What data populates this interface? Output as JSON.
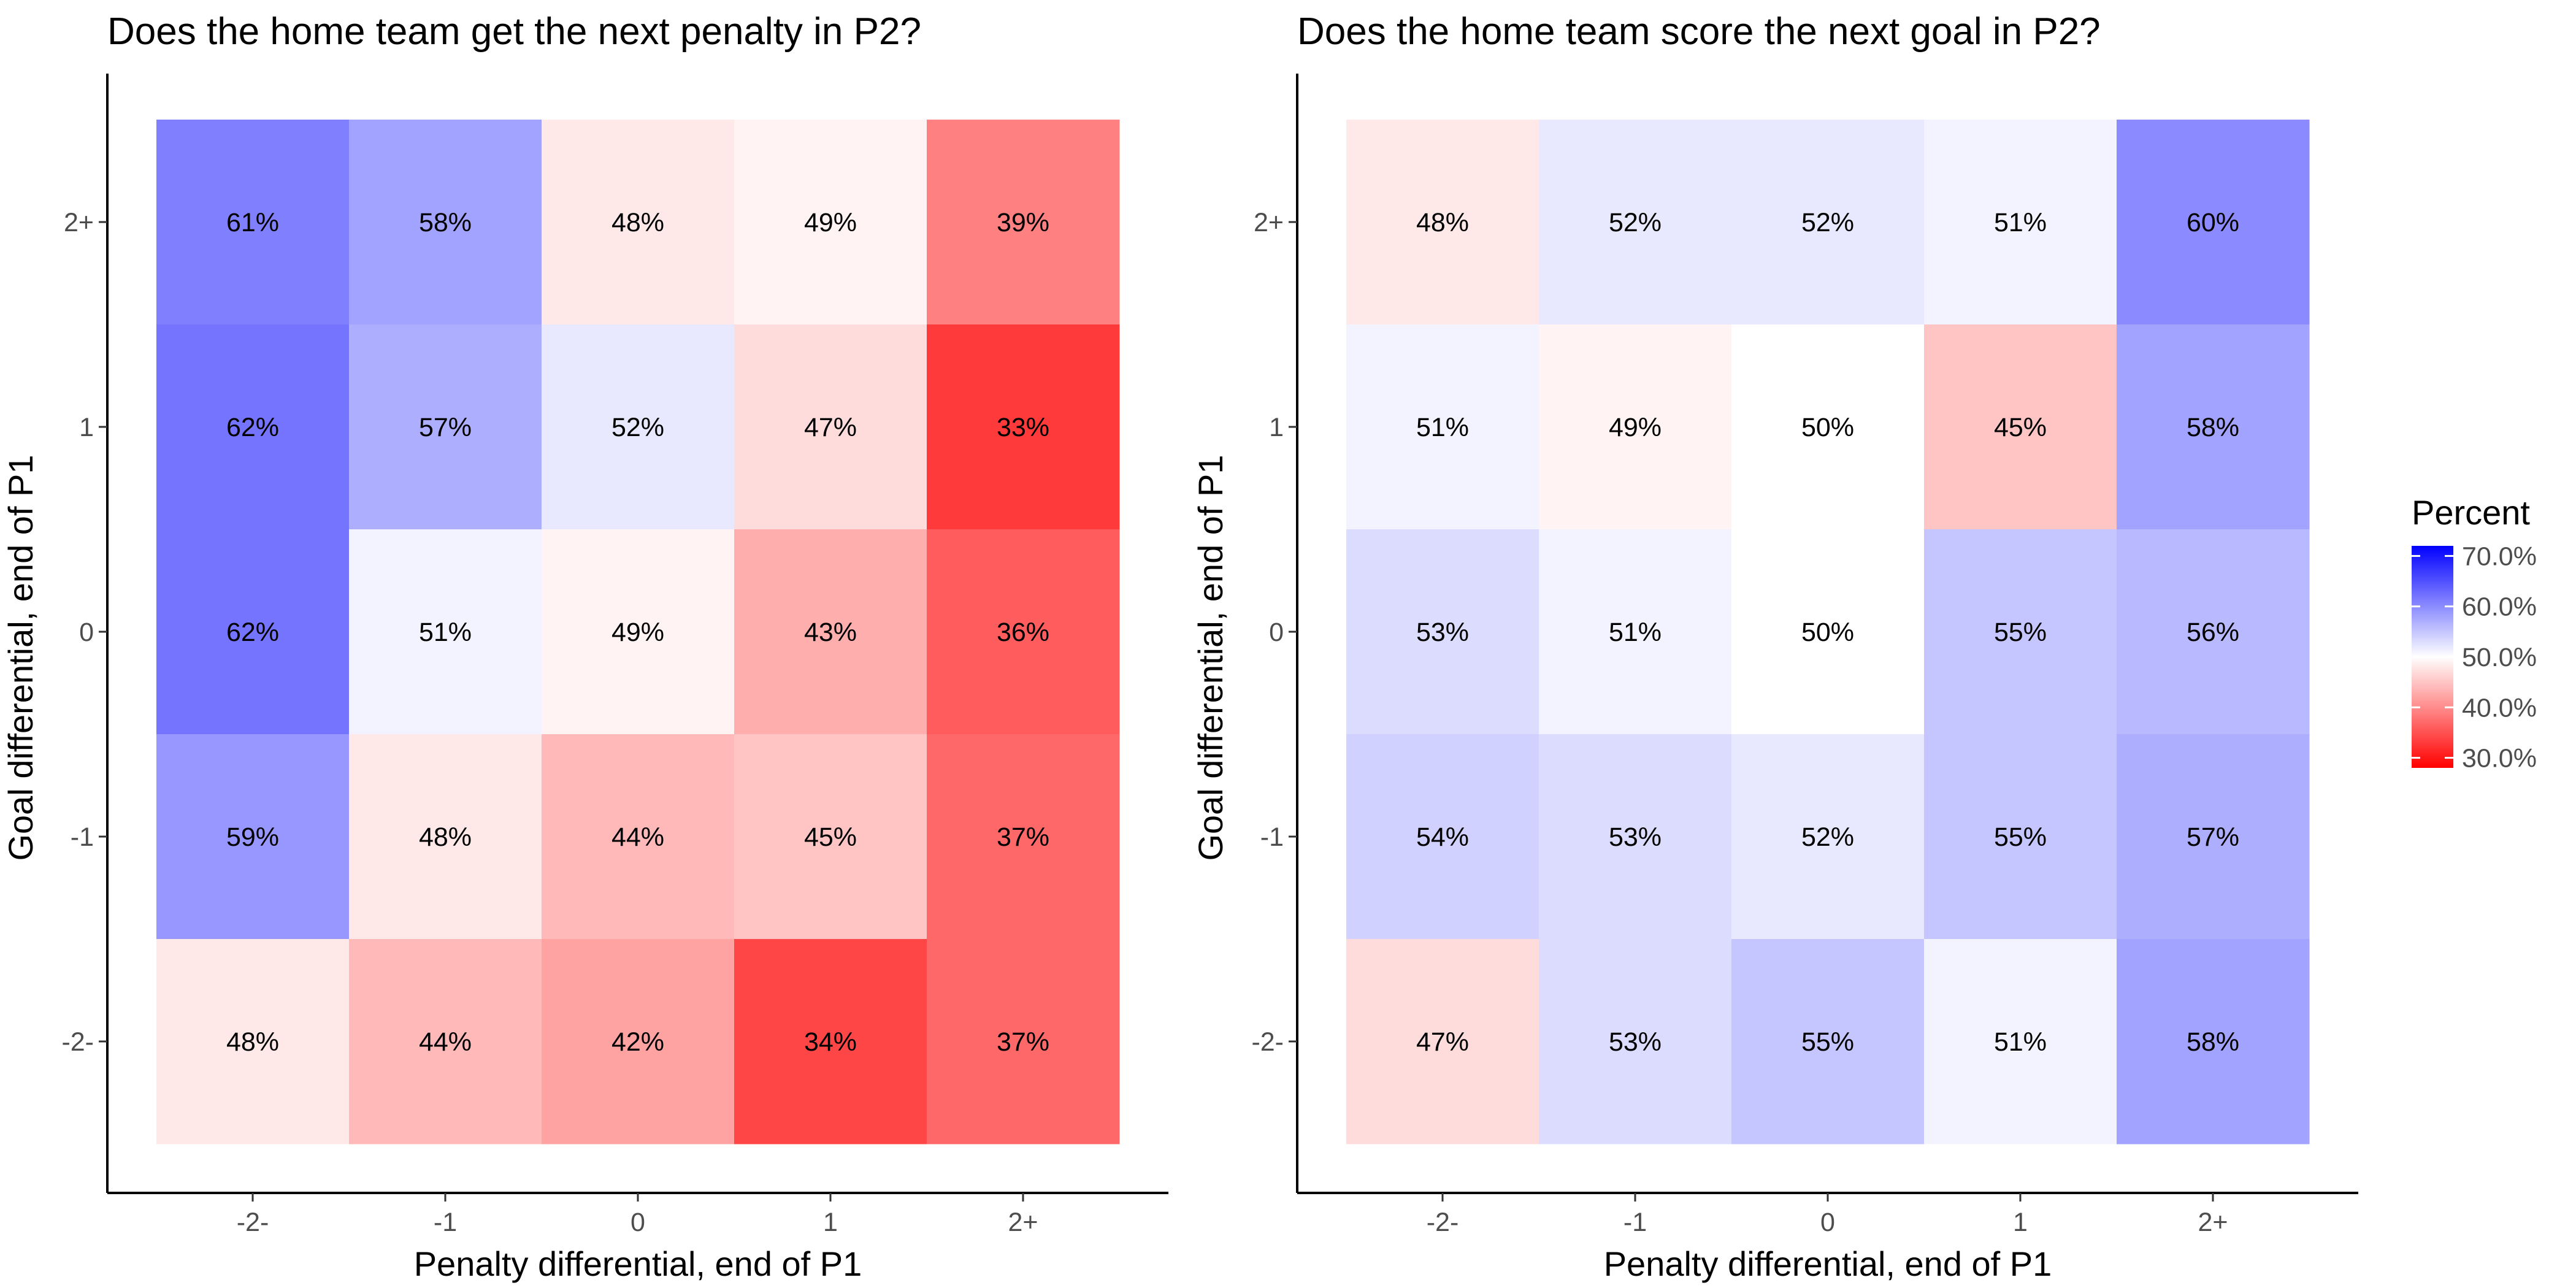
{
  "chart_data": [
    {
      "type": "heatmap",
      "title": "Does the home team get the next penalty in P2?",
      "xlabel": "Penalty differential, end of P1",
      "ylabel": "Goal differential, end of P1",
      "x_categories": [
        "-2-",
        "-1",
        "0",
        "1",
        "2+"
      ],
      "y_categories": [
        "2+",
        "1",
        "0",
        "-1",
        "-2-"
      ],
      "values": [
        [
          61,
          58,
          48,
          49,
          39
        ],
        [
          62,
          57,
          52,
          47,
          33
        ],
        [
          62,
          51,
          49,
          43,
          36
        ],
        [
          59,
          48,
          44,
          45,
          37
        ],
        [
          48,
          44,
          42,
          34,
          37
        ]
      ],
      "labels": [
        [
          "61%",
          "58%",
          "48%",
          "49%",
          "39%"
        ],
        [
          "62%",
          "57%",
          "52%",
          "47%",
          "33%"
        ],
        [
          "62%",
          "51%",
          "49%",
          "43%",
          "36%"
        ],
        [
          "59%",
          "48%",
          "44%",
          "45%",
          "37%"
        ],
        [
          "48%",
          "44%",
          "42%",
          "34%",
          "37%"
        ]
      ]
    },
    {
      "type": "heatmap",
      "title": "Does the home team score the next goal in P2?",
      "xlabel": "Penalty differential, end of P1",
      "ylabel": "Goal differential, end of P1",
      "x_categories": [
        "-2-",
        "-1",
        "0",
        "1",
        "2+"
      ],
      "y_categories": [
        "2+",
        "1",
        "0",
        "-1",
        "-2-"
      ],
      "values": [
        [
          48,
          52,
          52,
          51,
          60
        ],
        [
          51,
          49,
          50,
          45,
          58
        ],
        [
          53,
          51,
          50,
          55,
          56
        ],
        [
          54,
          53,
          52,
          55,
          57
        ],
        [
          47,
          53,
          55,
          51,
          58
        ]
      ],
      "labels": [
        [
          "48%",
          "52%",
          "52%",
          "51%",
          "60%"
        ],
        [
          "51%",
          "49%",
          "50%",
          "45%",
          "58%"
        ],
        [
          "53%",
          "51%",
          "50%",
          "55%",
          "56%"
        ],
        [
          "54%",
          "53%",
          "52%",
          "55%",
          "57%"
        ],
        [
          "47%",
          "53%",
          "55%",
          "51%",
          "58%"
        ]
      ]
    }
  ],
  "legend": {
    "title": "Percent",
    "ticks": [
      "70.0%",
      "60.0%",
      "50.0%",
      "40.0%",
      "30.0%"
    ],
    "tick_values": [
      70,
      60,
      50,
      40,
      30
    ],
    "range": [
      28,
      72
    ],
    "low_color": "#ff0000",
    "mid_color": "#ffffff",
    "high_color": "#0000ff",
    "midpoint": 50
  }
}
